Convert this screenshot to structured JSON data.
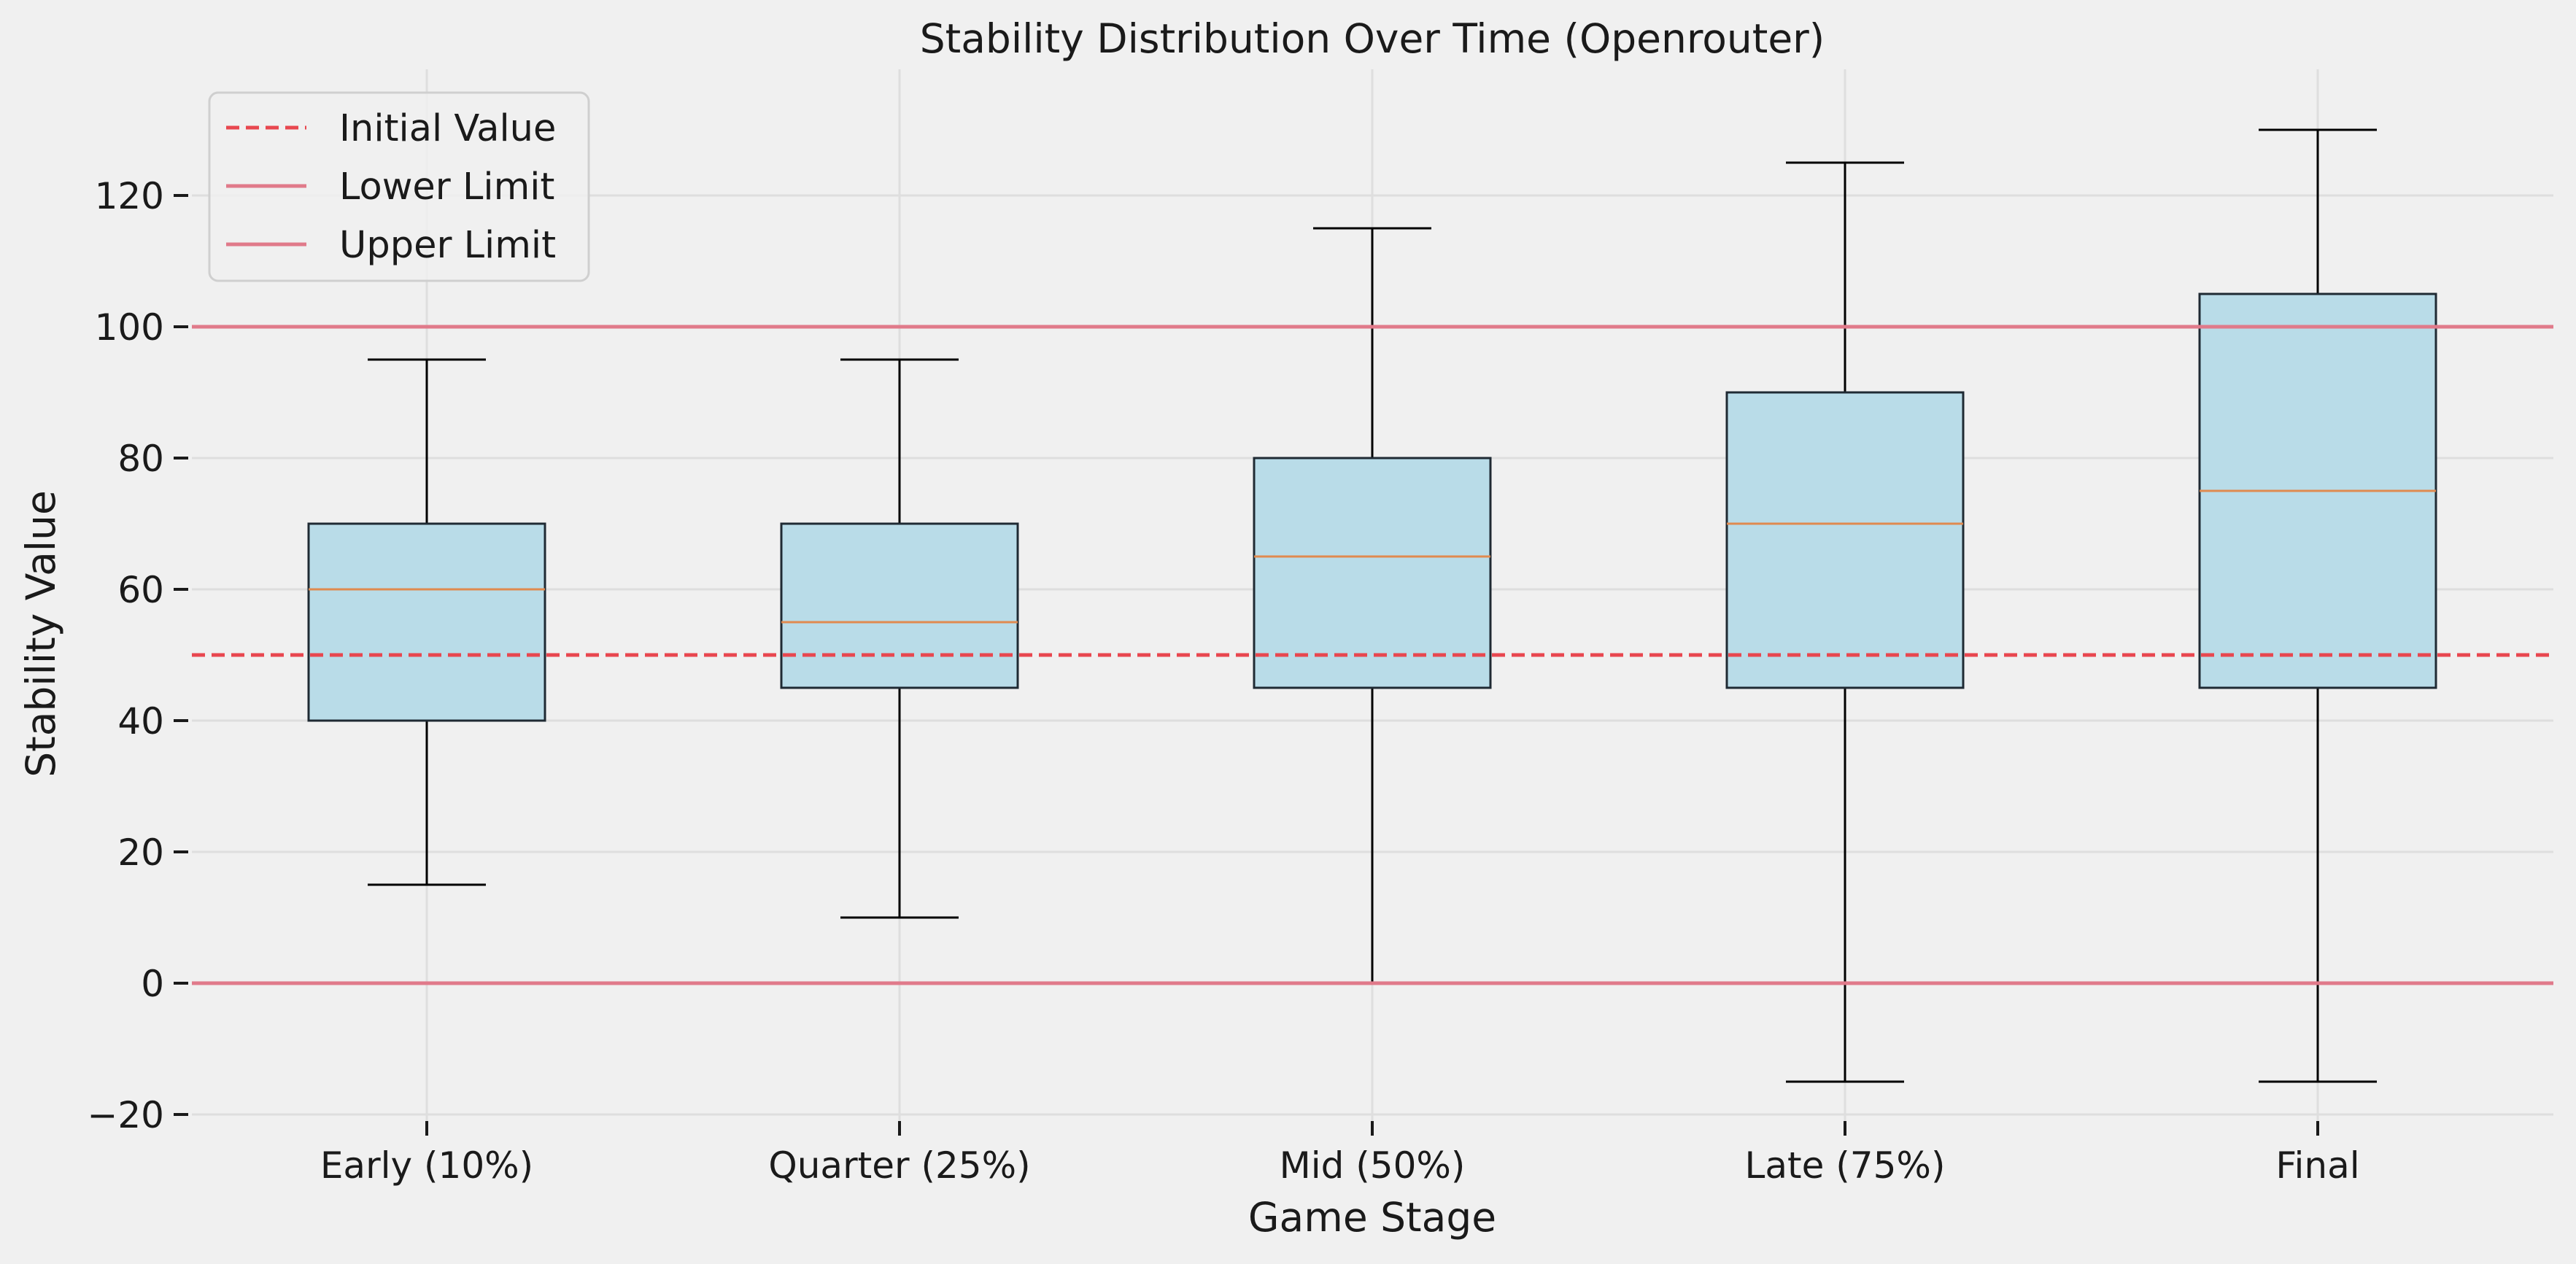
{
  "chart_data": {
    "type": "box",
    "title": "Stability Distribution Over Time (Openrouter)",
    "xlabel": "Game Stage",
    "ylabel": "Stability Value",
    "ylim": [
      -23,
      137
    ],
    "yticks": [
      -20,
      0,
      20,
      40,
      60,
      80,
      100,
      120
    ],
    "ytick_labels": [
      "−20",
      "0",
      "20",
      "40",
      "60",
      "80",
      "100",
      "120"
    ],
    "grid": true,
    "legend_position": "top-left",
    "categories": [
      "Early (10%)",
      "Quarter (25%)",
      "Mid (50%)",
      "Late (75%)",
      "Final"
    ],
    "boxes": [
      {
        "whisker_low": 15,
        "q1": 40,
        "median": 60,
        "q3": 70,
        "whisker_high": 95
      },
      {
        "whisker_low": 10,
        "q1": 45,
        "median": 55,
        "q3": 70,
        "whisker_high": 95
      },
      {
        "whisker_low": 0,
        "q1": 45,
        "median": 65,
        "q3": 80,
        "whisker_high": 115
      },
      {
        "whisker_low": -15,
        "q1": 45,
        "median": 70,
        "q3": 90,
        "whisker_high": 125
      },
      {
        "whisker_low": -15,
        "q1": 45,
        "median": 75,
        "q3": 105,
        "whisker_high": 130
      }
    ],
    "reference_lines": [
      {
        "name": "Initial Value",
        "y": 50,
        "style": "dashed",
        "color": "#e8474f"
      },
      {
        "name": "Lower Limit",
        "y": 0,
        "style": "solid",
        "color": "#e07a8a"
      },
      {
        "name": "Upper Limit",
        "y": 100,
        "style": "solid",
        "color": "#e07a8a"
      }
    ],
    "colors": {
      "box_fill": "#b9dce8",
      "box_edge": "#1f2a33",
      "median": "#e08a4f",
      "whisker": "#000000",
      "grid": "#dedede"
    }
  }
}
